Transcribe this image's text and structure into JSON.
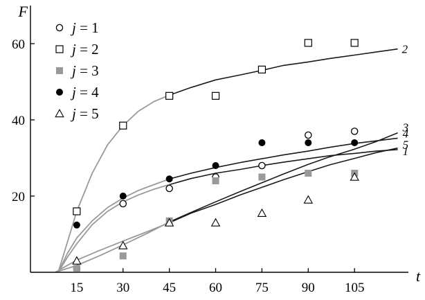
{
  "chart_data": {
    "type": "scatter",
    "title": "",
    "ylabel": "F",
    "xlabel": "t",
    "xlim": [
      0,
      122
    ],
    "ylim": [
      0,
      70
    ],
    "x_ticks": [
      15,
      30,
      45,
      60,
      75,
      90,
      105
    ],
    "y_ticks": [
      20,
      40,
      60
    ],
    "legend": {
      "placement": "top-left"
    },
    "colors": {
      "axis": "#000000",
      "fit_gray": "#999999",
      "fit_black": "#1a1a1a",
      "filled_gray": "#999999",
      "filled_black": "#000000"
    },
    "series": [
      {
        "name": "j = 1",
        "legend_var": "j",
        "legend_rest": " = 1",
        "marker": "circle-open",
        "x": [
          15,
          30,
          45,
          60,
          75,
          90,
          105
        ],
        "y": [
          1,
          18,
          22,
          25,
          28,
          36,
          37
        ]
      },
      {
        "name": "j = 2",
        "legend_var": "j",
        "legend_rest": " = 2",
        "marker": "square-open",
        "x": [
          15,
          30,
          45,
          60,
          75,
          90,
          105
        ],
        "y": [
          16,
          38.5,
          46.3,
          46.3,
          53.2,
          60.2,
          60.2
        ]
      },
      {
        "name": "j = 3",
        "legend_var": "j",
        "legend_rest": " = 3",
        "marker": "square-filled",
        "x": [
          15,
          30,
          45,
          60,
          75,
          90,
          105
        ],
        "y": [
          1,
          4.3,
          13.5,
          24,
          25,
          26,
          26
        ]
      },
      {
        "name": "j = 4",
        "legend_var": "j",
        "legend_rest": " = 4",
        "marker": "circle-filled",
        "x": [
          15,
          30,
          45,
          60,
          75,
          90,
          105
        ],
        "y": [
          12.4,
          20,
          24.5,
          28,
          34,
          34,
          34
        ]
      },
      {
        "name": "j = 5",
        "legend_var": "j",
        "legend_rest": " = 5",
        "marker": "triangle-open",
        "x": [
          15,
          30,
          45,
          60,
          75,
          90,
          105
        ],
        "y": [
          3,
          7,
          13,
          13,
          15.5,
          19,
          25
        ]
      }
    ],
    "fits": [
      {
        "label": "2",
        "x": [
          9,
          12,
          15,
          20,
          25,
          30,
          35,
          40,
          45,
          52,
          60,
          68,
          75,
          82,
          90,
          97,
          105,
          112,
          119
        ],
        "y": [
          0,
          8,
          16,
          26,
          33.5,
          38.5,
          42.3,
          44.8,
          46.5,
          48.5,
          50.5,
          51.8,
          53,
          54.3,
          55.2,
          56.1,
          57,
          57.8,
          58.6
        ]
      },
      {
        "label": "4",
        "x": [
          9,
          12,
          15,
          20,
          25,
          30,
          35,
          40,
          45,
          52,
          60,
          68,
          75,
          82,
          90,
          97,
          105,
          112,
          119
        ],
        "y": [
          0,
          5,
          9,
          13.5,
          17,
          19.5,
          21.5,
          23,
          24.5,
          26,
          27.5,
          28.8,
          29.8,
          30.8,
          31.8,
          32.8,
          33.8,
          34.5,
          35.2
        ]
      },
      {
        "label": "1",
        "x": [
          9,
          12,
          15,
          20,
          25,
          30,
          35,
          40,
          45,
          52,
          60,
          68,
          75,
          82,
          90,
          97,
          105,
          112,
          119
        ],
        "y": [
          0,
          4,
          7.5,
          12.5,
          16,
          18.5,
          20.3,
          21.8,
          23,
          24.6,
          26,
          27,
          28,
          28.9,
          29.8,
          30.6,
          31.2,
          31.8,
          32.2
        ]
      },
      {
        "label": "3",
        "x": [
          8,
          15,
          22,
          30,
          38,
          45,
          52,
          60,
          68,
          75,
          82,
          90,
          97,
          105,
          112,
          119
        ],
        "y": [
          0,
          1.8,
          4.2,
          7.2,
          10.3,
          13.2,
          15.7,
          18.5,
          21.2,
          23.5,
          25.8,
          28.3,
          30.3,
          32.3,
          34.3,
          36.6
        ]
      },
      {
        "label": "5",
        "x": [
          8,
          15,
          22,
          30,
          38,
          45,
          52,
          60,
          68,
          75,
          82,
          90,
          97,
          105,
          112,
          119
        ],
        "y": [
          0,
          3.2,
          5.6,
          8.2,
          10.7,
          13,
          15.5,
          17.8,
          20.3,
          22.3,
          24.3,
          26.4,
          28.2,
          29.9,
          31.4,
          32.6
        ]
      }
    ]
  }
}
